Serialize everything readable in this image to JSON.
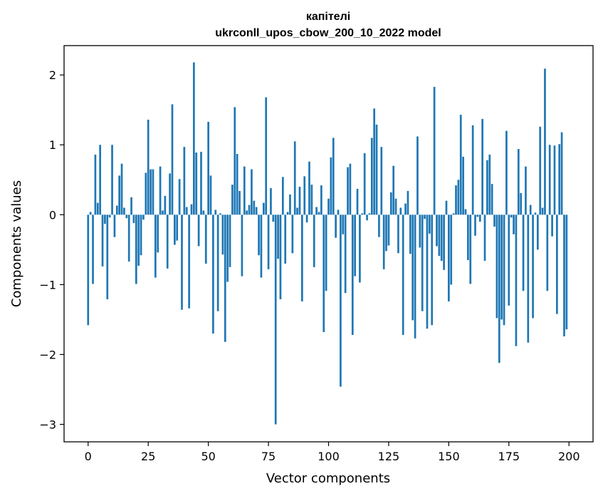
{
  "chart_data": {
    "type": "bar",
    "title": "капітелі",
    "subtitle": "ukrconll_upos_cbow_200_10_2022 model",
    "xlabel": "Vector components",
    "ylabel": "Components values",
    "xlim": [
      -10,
      210
    ],
    "ylim": [
      -3.25,
      2.42
    ],
    "xticks": [
      0,
      25,
      50,
      75,
      100,
      125,
      150,
      175,
      200
    ],
    "yticks": [
      -3,
      -2,
      -1,
      0,
      1,
      2
    ],
    "bar_color": "#1f77b4",
    "x": [
      0,
      1,
      2,
      3,
      4,
      5,
      6,
      7,
      8,
      9,
      10,
      11,
      12,
      13,
      14,
      15,
      16,
      17,
      18,
      19,
      20,
      21,
      22,
      23,
      24,
      25,
      26,
      27,
      28,
      29,
      30,
      31,
      32,
      33,
      34,
      35,
      36,
      37,
      38,
      39,
      40,
      41,
      42,
      43,
      44,
      45,
      46,
      47,
      48,
      49,
      50,
      51,
      52,
      53,
      54,
      55,
      56,
      57,
      58,
      59,
      60,
      61,
      62,
      63,
      64,
      65,
      66,
      67,
      68,
      69,
      70,
      71,
      72,
      73,
      74,
      75,
      76,
      77,
      78,
      79,
      80,
      81,
      82,
      83,
      84,
      85,
      86,
      87,
      88,
      89,
      90,
      91,
      92,
      93,
      94,
      95,
      96,
      97,
      98,
      99,
      100,
      101,
      102,
      103,
      104,
      105,
      106,
      107,
      108,
      109,
      110,
      111,
      112,
      113,
      114,
      115,
      116,
      117,
      118,
      119,
      120,
      121,
      122,
      123,
      124,
      125,
      126,
      127,
      128,
      129,
      130,
      131,
      132,
      133,
      134,
      135,
      136,
      137,
      138,
      139,
      140,
      141,
      142,
      143,
      144,
      145,
      146,
      147,
      148,
      149,
      150,
      151,
      152,
      153,
      154,
      155,
      156,
      157,
      158,
      159,
      160,
      161,
      162,
      163,
      164,
      165,
      166,
      167,
      168,
      169,
      170,
      171,
      172,
      173,
      174,
      175,
      176,
      177,
      178,
      179,
      180,
      181,
      182,
      183,
      184,
      185,
      186,
      187,
      188,
      189,
      190,
      191,
      192,
      193,
      194,
      195,
      196,
      197,
      198,
      199
    ],
    "values": [
      -1.58,
      0.04,
      -0.99,
      0.86,
      0.17,
      1.0,
      -0.74,
      -0.13,
      -1.21,
      -0.04,
      1.0,
      -0.32,
      0.13,
      0.56,
      0.73,
      0.1,
      -0.05,
      -0.67,
      0.25,
      -0.12,
      -0.99,
      -0.73,
      -0.58,
      -0.07,
      0.6,
      1.36,
      0.65,
      0.65,
      -0.9,
      -0.54,
      0.69,
      0.06,
      0.27,
      -0.77,
      0.59,
      1.58,
      -0.43,
      -0.37,
      0.51,
      -1.36,
      0.97,
      0.11,
      -1.34,
      0.15,
      2.18,
      0.89,
      -0.45,
      0.9,
      0.06,
      -0.7,
      1.33,
      0.56,
      -1.7,
      0.07,
      -1.38,
      0.02,
      -0.57,
      -1.82,
      -0.96,
      -0.75,
      0.43,
      1.54,
      0.87,
      0.34,
      -0.88,
      0.69,
      0.06,
      0.14,
      0.65,
      0.2,
      0.11,
      -0.58,
      -0.9,
      0.17,
      1.68,
      -0.78,
      0.38,
      -0.1,
      -3.0,
      -0.63,
      -1.21,
      0.54,
      -0.7,
      0.04,
      0.29,
      -0.55,
      1.05,
      0.1,
      0.4,
      -1.24,
      0.55,
      -0.11,
      0.76,
      0.43,
      -0.75,
      0.11,
      0.04,
      0.42,
      -1.68,
      -1.09,
      0.23,
      0.82,
      1.1,
      -0.33,
      0.07,
      -2.46,
      -0.28,
      -1.12,
      0.68,
      0.73,
      -1.72,
      -0.88,
      0.37,
      -0.97,
      0.02,
      0.88,
      -0.08,
      0.02,
      1.1,
      1.52,
      1.29,
      -0.32,
      0.97,
      -0.78,
      -0.52,
      -0.44,
      0.32,
      0.7,
      0.23,
      -0.55,
      0.1,
      -1.72,
      0.16,
      0.34,
      -0.56,
      -1.51,
      -1.77,
      1.12,
      -0.47,
      -1.38,
      -0.06,
      -1.63,
      -0.27,
      -1.58,
      1.83,
      -0.45,
      -0.59,
      -0.66,
      -0.79,
      0.2,
      -1.24,
      -1.0,
      0.02,
      0.42,
      0.5,
      1.43,
      0.83,
      0.08,
      -0.65,
      -0.99,
      1.28,
      -0.3,
      -0.03,
      -0.1,
      1.37,
      -0.66,
      0.78,
      0.86,
      0.44,
      -0.17,
      -1.48,
      -2.12,
      -1.5,
      -1.58,
      1.2,
      -1.3,
      -0.04,
      -0.28,
      -1.88,
      0.94,
      0.31,
      -1.09,
      0.69,
      -1.83,
      0.14,
      -1.48,
      0.03,
      -0.5,
      1.26,
      0.1,
      2.09,
      -1.09,
      1.0,
      -0.31,
      0.99,
      -1.42,
      1.01,
      1.18,
      -1.74,
      -1.64
    ]
  }
}
